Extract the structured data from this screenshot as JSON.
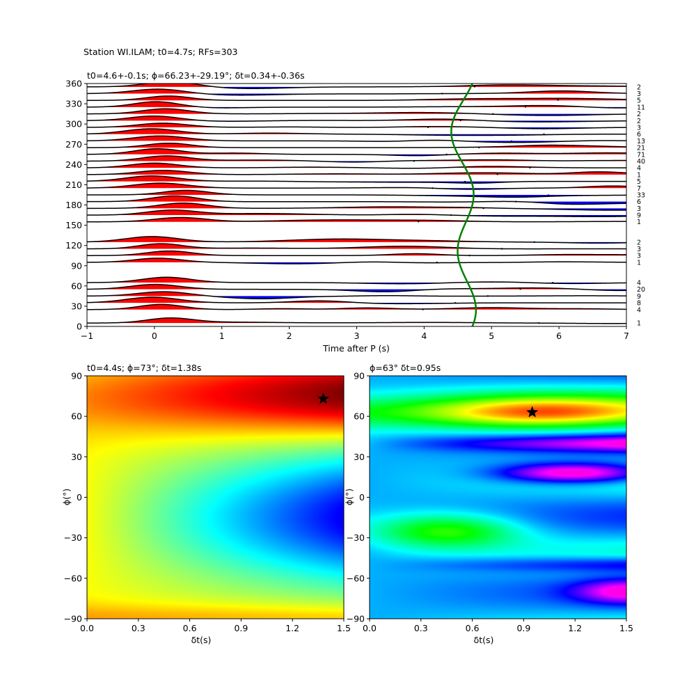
{
  "figure": {
    "suptitle": "Station WI.ILAM; t0=4.7s; RFs=303"
  },
  "chart_data": [
    {
      "type": "wiggle",
      "title": "t0=4.6+-0.1s; ϕ=66.23+-29.19°; δt=0.34+-0.36s",
      "xlabel": "Time after P (s)",
      "ylabel": "",
      "xlim": [
        -1,
        7
      ],
      "ylim": [
        0,
        360
      ],
      "xticks": [
        -1,
        0,
        1,
        2,
        3,
        4,
        5,
        6,
        7
      ],
      "yticks": [
        0,
        30,
        60,
        90,
        120,
        150,
        180,
        210,
        240,
        270,
        300,
        330,
        360
      ],
      "positive_fill": "#ff0000",
      "negative_fill": "#0000ff",
      "traces": [
        {
          "baz": 5,
          "count": "1"
        },
        {
          "baz": 25,
          "count": "4"
        },
        {
          "baz": 35,
          "count": "8"
        },
        {
          "baz": 45,
          "count": "9"
        },
        {
          "baz": 55,
          "count": "20"
        },
        {
          "baz": 65,
          "count": "4"
        },
        {
          "baz": 95,
          "count": "1"
        },
        {
          "baz": 105,
          "count": "3"
        },
        {
          "baz": 115,
          "count": "3"
        },
        {
          "baz": 125,
          "count": "2"
        },
        {
          "baz": 155,
          "count": "1"
        },
        {
          "baz": 165,
          "count": "9"
        },
        {
          "baz": 175,
          "count": "3"
        },
        {
          "baz": 185,
          "count": "6"
        },
        {
          "baz": 195,
          "count": "33"
        },
        {
          "baz": 205,
          "count": "7"
        },
        {
          "baz": 215,
          "count": "5"
        },
        {
          "baz": 225,
          "count": "1"
        },
        {
          "baz": 235,
          "count": "4"
        },
        {
          "baz": 245,
          "count": "40"
        },
        {
          "baz": 255,
          "count": "71"
        },
        {
          "baz": 265,
          "count": "21"
        },
        {
          "baz": 275,
          "count": "13"
        },
        {
          "baz": 285,
          "count": "6"
        },
        {
          "baz": 295,
          "count": "3"
        },
        {
          "baz": 305,
          "count": "2"
        },
        {
          "baz": 315,
          "count": "2"
        },
        {
          "baz": 325,
          "count": "11"
        },
        {
          "baz": 335,
          "count": "5"
        },
        {
          "baz": 345,
          "count": "3"
        },
        {
          "baz": 355,
          "count": "2"
        }
      ],
      "t0_curve_color": "#008000",
      "t0_curve_mean": 4.6,
      "t0_curve_amplitude": 0.15
    },
    {
      "type": "heatmap",
      "title": "t0=4.4s; ϕ=73°; δt=1.38s",
      "xlabel": "δt(s)",
      "ylabel": "ϕ(°)",
      "xlim": [
        0.0,
        1.5
      ],
      "ylim": [
        -90,
        90
      ],
      "xticks": [
        "0.0",
        "0.3",
        "0.6",
        "0.9",
        "1.2",
        "1.5"
      ],
      "yticks": [
        "−90",
        "−60",
        "−30",
        "0",
        "30",
        "60",
        "90"
      ],
      "colormap": "jet",
      "best": {
        "dt": 1.38,
        "phi": 73
      }
    },
    {
      "type": "heatmap",
      "title": "ϕ=63° δt=0.95s",
      "xlabel": "δt(s)",
      "ylabel": "ϕ(°)",
      "xlim": [
        0.0,
        1.5
      ],
      "ylim": [
        -90,
        90
      ],
      "xticks": [
        "0.0",
        "0.3",
        "0.6",
        "0.9",
        "1.2",
        "1.5"
      ],
      "yticks": [
        "−90",
        "−60",
        "−30",
        "0",
        "30",
        "60",
        "90"
      ],
      "colormap": "hsv",
      "best": {
        "dt": 0.95,
        "phi": 63
      }
    }
  ]
}
